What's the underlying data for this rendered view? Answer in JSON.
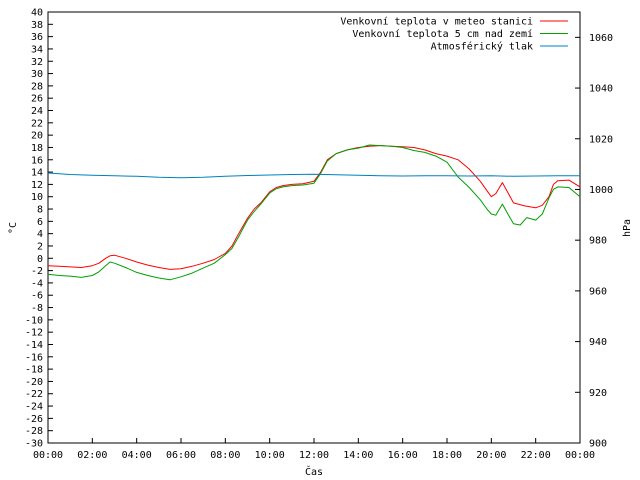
{
  "chart_data": {
    "type": "line",
    "title": "",
    "xlabel": "Čas",
    "ylabel": "°C",
    "y2label": "hPa",
    "x_ticks": [
      "00:00",
      "02:00",
      "04:00",
      "06:00",
      "08:00",
      "10:00",
      "12:00",
      "14:00",
      "16:00",
      "18:00",
      "20:00",
      "22:00",
      "00:00"
    ],
    "x_range_hours": [
      0,
      24
    ],
    "ylim": [
      -30,
      40
    ],
    "y_tick_step": 2,
    "y2lim": [
      900,
      1070
    ],
    "y2_ticks": [
      900,
      920,
      940,
      960,
      980,
      1000,
      1020,
      1040,
      1060
    ],
    "grid": false,
    "legend_position": "top-right",
    "series": [
      {
        "name": "Venkovní teplota v meteo stanici",
        "color": "#ff0000",
        "axis": "left",
        "points": [
          [
            0,
            -1.2
          ],
          [
            0.5,
            -1.3
          ],
          [
            1,
            -1.4
          ],
          [
            1.5,
            -1.5
          ],
          [
            2,
            -1.2
          ],
          [
            2.3,
            -0.8
          ],
          [
            2.6,
            0
          ],
          [
            2.8,
            0.4
          ],
          [
            3,
            0.5
          ],
          [
            3.5,
            0
          ],
          [
            4,
            -0.6
          ],
          [
            4.5,
            -1.1
          ],
          [
            5,
            -1.5
          ],
          [
            5.5,
            -1.8
          ],
          [
            6,
            -1.7
          ],
          [
            6.5,
            -1.3
          ],
          [
            7,
            -0.8
          ],
          [
            7.5,
            -0.2
          ],
          [
            8,
            0.8
          ],
          [
            8.3,
            2
          ],
          [
            8.6,
            4
          ],
          [
            9,
            6.5
          ],
          [
            9.3,
            8
          ],
          [
            9.6,
            9
          ],
          [
            10,
            10.8
          ],
          [
            10.3,
            11.5
          ],
          [
            10.6,
            11.8
          ],
          [
            11,
            12
          ],
          [
            11.5,
            12.1
          ],
          [
            12,
            12.5
          ],
          [
            12.3,
            14
          ],
          [
            12.6,
            16
          ],
          [
            13,
            17
          ],
          [
            13.5,
            17.6
          ],
          [
            14,
            18
          ],
          [
            14.5,
            18.2
          ],
          [
            15,
            18.3
          ],
          [
            15.5,
            18.2
          ],
          [
            16,
            18.1
          ],
          [
            16.5,
            18
          ],
          [
            17,
            17.6
          ],
          [
            17.5,
            17
          ],
          [
            18,
            16.6
          ],
          [
            18.5,
            16
          ],
          [
            19,
            14.5
          ],
          [
            19.5,
            12.5
          ],
          [
            19.8,
            11
          ],
          [
            20,
            10
          ],
          [
            20.2,
            10.5
          ],
          [
            20.5,
            12.3
          ],
          [
            20.7,
            11
          ],
          [
            21,
            9
          ],
          [
            21.5,
            8.5
          ],
          [
            22,
            8.2
          ],
          [
            22.3,
            8.6
          ],
          [
            22.6,
            10
          ],
          [
            22.8,
            12
          ],
          [
            23,
            12.6
          ],
          [
            23.5,
            12.7
          ],
          [
            24,
            11.6
          ]
        ]
      },
      {
        "name": "Venkovní teplota 5 cm nad zemí",
        "color": "#00a000",
        "axis": "left",
        "points": [
          [
            0,
            -2.6
          ],
          [
            0.5,
            -2.8
          ],
          [
            1,
            -2.9
          ],
          [
            1.5,
            -3.1
          ],
          [
            2,
            -2.8
          ],
          [
            2.3,
            -2.2
          ],
          [
            2.6,
            -1.2
          ],
          [
            2.8,
            -0.6
          ],
          [
            3,
            -0.8
          ],
          [
            3.5,
            -1.5
          ],
          [
            4,
            -2.3
          ],
          [
            4.5,
            -2.8
          ],
          [
            5,
            -3.2
          ],
          [
            5.5,
            -3.5
          ],
          [
            6,
            -3
          ],
          [
            6.5,
            -2.4
          ],
          [
            7,
            -1.6
          ],
          [
            7.5,
            -0.8
          ],
          [
            8,
            0.6
          ],
          [
            8.3,
            1.6
          ],
          [
            8.6,
            3.5
          ],
          [
            9,
            6.2
          ],
          [
            9.3,
            7.6
          ],
          [
            9.6,
            8.8
          ],
          [
            10,
            10.6
          ],
          [
            10.3,
            11.3
          ],
          [
            10.6,
            11.6
          ],
          [
            11,
            11.8
          ],
          [
            11.5,
            11.9
          ],
          [
            12,
            12.2
          ],
          [
            12.3,
            13.8
          ],
          [
            12.6,
            15.8
          ],
          [
            13,
            17
          ],
          [
            13.5,
            17.6
          ],
          [
            14,
            17.9
          ],
          [
            14.5,
            18.4
          ],
          [
            15,
            18.3
          ],
          [
            15.5,
            18.2
          ],
          [
            16,
            18
          ],
          [
            16.5,
            17.5
          ],
          [
            17,
            17.2
          ],
          [
            17.5,
            16.6
          ],
          [
            18,
            15.6
          ],
          [
            18.5,
            13.2
          ],
          [
            19,
            11.5
          ],
          [
            19.5,
            9.5
          ],
          [
            19.8,
            8
          ],
          [
            20,
            7.2
          ],
          [
            20.2,
            7
          ],
          [
            20.5,
            8.8
          ],
          [
            20.7,
            7.5
          ],
          [
            21,
            5.6
          ],
          [
            21.3,
            5.4
          ],
          [
            21.6,
            6.6
          ],
          [
            22,
            6.2
          ],
          [
            22.3,
            7.2
          ],
          [
            22.6,
            9.8
          ],
          [
            22.8,
            11.2
          ],
          [
            23,
            11.6
          ],
          [
            23.5,
            11.5
          ],
          [
            24,
            10
          ]
        ]
      },
      {
        "name": "Atmosférický tlak",
        "color": "#0080c0",
        "axis": "right",
        "points": [
          [
            0,
            1006.5
          ],
          [
            1,
            1005.9
          ],
          [
            2,
            1005.6
          ],
          [
            3,
            1005.4
          ],
          [
            4,
            1005.2
          ],
          [
            5,
            1004.8
          ],
          [
            6,
            1004.6
          ],
          [
            7,
            1004.8
          ],
          [
            8,
            1005.2
          ],
          [
            9,
            1005.5
          ],
          [
            10,
            1005.7
          ],
          [
            11,
            1005.9
          ],
          [
            12,
            1006
          ],
          [
            13,
            1005.8
          ],
          [
            14,
            1005.6
          ],
          [
            15,
            1005.4
          ],
          [
            16,
            1005.3
          ],
          [
            17,
            1005.4
          ],
          [
            18,
            1005.4
          ],
          [
            19,
            1005.3
          ],
          [
            20,
            1005.4
          ],
          [
            21,
            1005.2
          ],
          [
            22,
            1005.3
          ],
          [
            23,
            1005.4
          ],
          [
            24,
            1005.4
          ]
        ]
      }
    ]
  }
}
